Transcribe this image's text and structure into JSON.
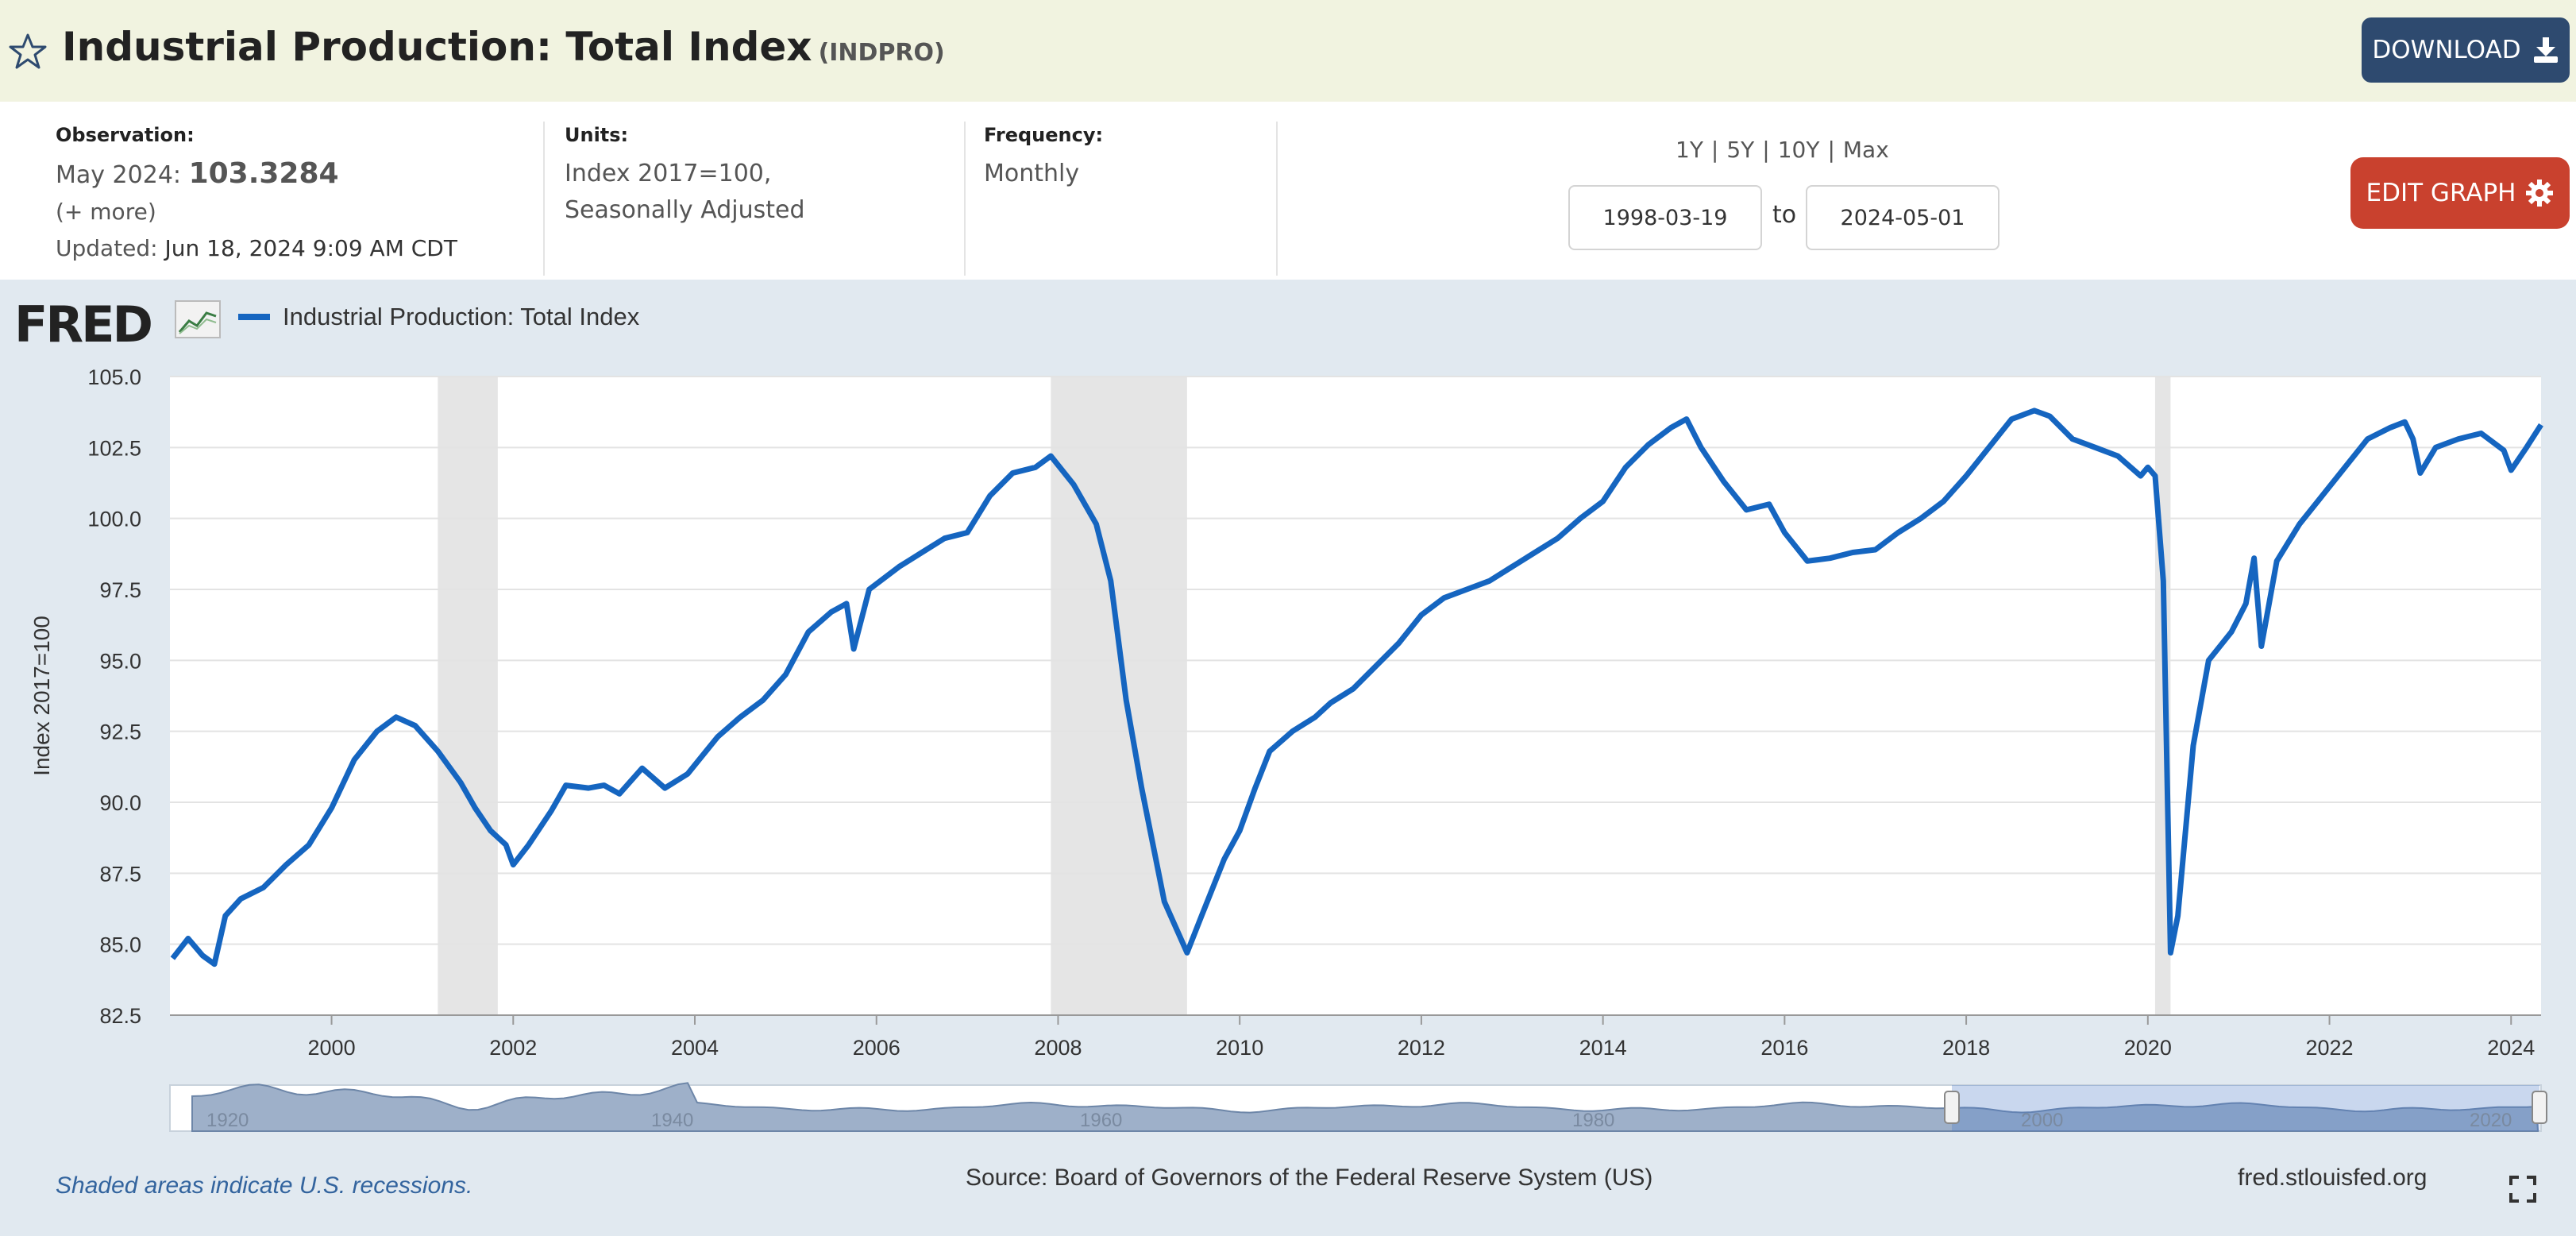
{
  "header": {
    "title": "Industrial Production: Total Index",
    "series_id": "(INDPRO)",
    "download_label": "DOWNLOAD"
  },
  "meta": {
    "observation_label": "Observation:",
    "observation_date": "May 2024:",
    "observation_value": "103.3284",
    "more_link": "(+ more)",
    "updated_label": "Updated:",
    "updated_value": "Jun 18, 2024 9:09 AM CDT",
    "units_label": "Units:",
    "units_line1": "Index 2017=100,",
    "units_line2": "Seasonally Adjusted",
    "frequency_label": "Frequency:",
    "frequency_value": "Monthly"
  },
  "controls": {
    "ranges": [
      "1Y",
      "5Y",
      "10Y",
      "Max"
    ],
    "start_date": "1998-03-19",
    "to_label": "to",
    "end_date": "2024-05-01",
    "edit_label": "EDIT GRAPH"
  },
  "legend": {
    "logo": "FRED",
    "series_name": "Industrial Production: Total Index"
  },
  "footer": {
    "recession_note": "Shaded areas indicate U.S. recessions.",
    "source": "Source: Board of Governors of the Federal Reserve System (US)",
    "site": "fred.stlouisfed.org"
  },
  "colors": {
    "series": "#1565c0",
    "recession": "#e5e5e5",
    "header_bg": "#f1f3e0",
    "download_btn": "#2e4a6f",
    "edit_btn": "#c9412e"
  },
  "icons": {
    "favorite": "star-icon",
    "download": "download-icon",
    "edit": "gear-icon",
    "fullscreen": "expand-icon"
  },
  "chart_data": {
    "type": "line",
    "ylabel": "Index 2017=100",
    "xlim": [
      1998.22,
      2024.33
    ],
    "ylim": [
      82.5,
      105.0
    ],
    "yticks": [
      82.5,
      85.0,
      87.5,
      90.0,
      92.5,
      95.0,
      97.5,
      100.0,
      102.5,
      105.0
    ],
    "ytick_labels": [
      "82.5",
      "85.0",
      "87.5",
      "90.0",
      "92.5",
      "95.0",
      "97.5",
      "100.0",
      "102.5",
      "105.0"
    ],
    "xticks": [
      2000,
      2002,
      2004,
      2006,
      2008,
      2010,
      2012,
      2014,
      2016,
      2018,
      2020,
      2022,
      2024
    ],
    "xtick_labels": [
      "2000",
      "2002",
      "2004",
      "2006",
      "2008",
      "2010",
      "2012",
      "2014",
      "2016",
      "2018",
      "2020",
      "2022",
      "2024"
    ],
    "grid": true,
    "recessions": [
      [
        2001.17,
        2001.83
      ],
      [
        2007.92,
        2009.42
      ],
      [
        2020.08,
        2020.25
      ]
    ],
    "series": [
      {
        "name": "Industrial Production: Total Index",
        "points": [
          [
            1998.25,
            84.5
          ],
          [
            1998.42,
            85.2
          ],
          [
            1998.58,
            84.6
          ],
          [
            1998.71,
            84.3
          ],
          [
            1998.83,
            86.0
          ],
          [
            1999.0,
            86.6
          ],
          [
            1999.25,
            87.0
          ],
          [
            1999.5,
            87.8
          ],
          [
            1999.75,
            88.5
          ],
          [
            2000.0,
            89.8
          ],
          [
            2000.25,
            91.5
          ],
          [
            2000.5,
            92.5
          ],
          [
            2000.71,
            93.0
          ],
          [
            2000.92,
            92.7
          ],
          [
            2001.17,
            91.8
          ],
          [
            2001.42,
            90.7
          ],
          [
            2001.58,
            89.8
          ],
          [
            2001.75,
            89.0
          ],
          [
            2001.92,
            88.5
          ],
          [
            2002.0,
            87.8
          ],
          [
            2002.17,
            88.5
          ],
          [
            2002.42,
            89.7
          ],
          [
            2002.58,
            90.6
          ],
          [
            2002.83,
            90.5
          ],
          [
            2003.0,
            90.6
          ],
          [
            2003.17,
            90.3
          ],
          [
            2003.42,
            91.2
          ],
          [
            2003.67,
            90.5
          ],
          [
            2003.92,
            91.0
          ],
          [
            2004.25,
            92.3
          ],
          [
            2004.5,
            93.0
          ],
          [
            2004.75,
            93.6
          ],
          [
            2005.0,
            94.5
          ],
          [
            2005.25,
            96.0
          ],
          [
            2005.5,
            96.7
          ],
          [
            2005.67,
            97.0
          ],
          [
            2005.75,
            95.4
          ],
          [
            2005.92,
            97.5
          ],
          [
            2006.25,
            98.3
          ],
          [
            2006.5,
            98.8
          ],
          [
            2006.75,
            99.3
          ],
          [
            2007.0,
            99.5
          ],
          [
            2007.25,
            100.8
          ],
          [
            2007.5,
            101.6
          ],
          [
            2007.75,
            101.8
          ],
          [
            2007.92,
            102.2
          ],
          [
            2008.17,
            101.2
          ],
          [
            2008.42,
            99.8
          ],
          [
            2008.58,
            97.8
          ],
          [
            2008.75,
            93.6
          ],
          [
            2008.92,
            90.5
          ],
          [
            2009.17,
            86.5
          ],
          [
            2009.42,
            84.7
          ],
          [
            2009.58,
            86.0
          ],
          [
            2009.83,
            88.0
          ],
          [
            2010.0,
            89.0
          ],
          [
            2010.17,
            90.5
          ],
          [
            2010.33,
            91.8
          ],
          [
            2010.58,
            92.5
          ],
          [
            2010.83,
            93.0
          ],
          [
            2011.0,
            93.5
          ],
          [
            2011.25,
            94.0
          ],
          [
            2011.5,
            94.8
          ],
          [
            2011.75,
            95.6
          ],
          [
            2012.0,
            96.6
          ],
          [
            2012.25,
            97.2
          ],
          [
            2012.5,
            97.5
          ],
          [
            2012.75,
            97.8
          ],
          [
            2013.0,
            98.3
          ],
          [
            2013.25,
            98.8
          ],
          [
            2013.5,
            99.3
          ],
          [
            2013.75,
            100.0
          ],
          [
            2014.0,
            100.6
          ],
          [
            2014.25,
            101.8
          ],
          [
            2014.5,
            102.6
          ],
          [
            2014.75,
            103.2
          ],
          [
            2014.92,
            103.5
          ],
          [
            2015.08,
            102.5
          ],
          [
            2015.33,
            101.3
          ],
          [
            2015.58,
            100.3
          ],
          [
            2015.83,
            100.5
          ],
          [
            2016.0,
            99.5
          ],
          [
            2016.25,
            98.5
          ],
          [
            2016.5,
            98.6
          ],
          [
            2016.75,
            98.8
          ],
          [
            2017.0,
            98.9
          ],
          [
            2017.25,
            99.5
          ],
          [
            2017.5,
            100.0
          ],
          [
            2017.75,
            100.6
          ],
          [
            2018.0,
            101.5
          ],
          [
            2018.25,
            102.5
          ],
          [
            2018.5,
            103.5
          ],
          [
            2018.75,
            103.8
          ],
          [
            2018.92,
            103.6
          ],
          [
            2019.17,
            102.8
          ],
          [
            2019.42,
            102.5
          ],
          [
            2019.67,
            102.2
          ],
          [
            2019.92,
            101.5
          ],
          [
            2020.0,
            101.8
          ],
          [
            2020.08,
            101.5
          ],
          [
            2020.17,
            97.8
          ],
          [
            2020.25,
            84.7
          ],
          [
            2020.33,
            86.0
          ],
          [
            2020.5,
            92.0
          ],
          [
            2020.67,
            95.0
          ],
          [
            2020.92,
            96.0
          ],
          [
            2021.08,
            97.0
          ],
          [
            2021.17,
            98.6
          ],
          [
            2021.25,
            95.5
          ],
          [
            2021.42,
            98.5
          ],
          [
            2021.67,
            99.8
          ],
          [
            2021.92,
            100.8
          ],
          [
            2022.17,
            101.8
          ],
          [
            2022.42,
            102.8
          ],
          [
            2022.67,
            103.2
          ],
          [
            2022.83,
            103.4
          ],
          [
            2022.92,
            102.8
          ],
          [
            2023.0,
            101.6
          ],
          [
            2023.17,
            102.5
          ],
          [
            2023.42,
            102.8
          ],
          [
            2023.67,
            103.0
          ],
          [
            2023.92,
            102.4
          ],
          [
            2024.0,
            101.7
          ],
          [
            2024.17,
            102.5
          ],
          [
            2024.33,
            103.3
          ]
        ]
      }
    ],
    "navigator": {
      "xtick_labels": [
        "1920",
        "1940",
        "1960",
        "1980",
        "2000",
        "2020"
      ]
    }
  }
}
